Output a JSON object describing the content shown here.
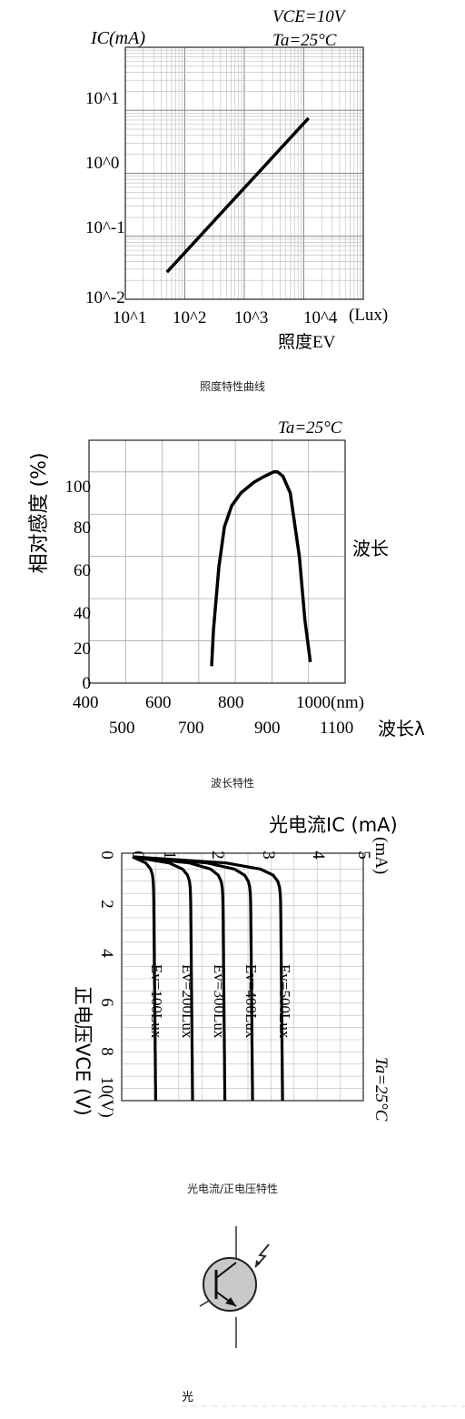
{
  "chart_data": [
    {
      "type": "line",
      "caption": "照度特性曲线",
      "ylabel": "IC(mA)",
      "xlabel": "照度EV",
      "x_unit": "(Lux)",
      "conditions": [
        "VCE=10V",
        "Ta=25°C"
      ],
      "xscale": "log",
      "yscale": "log",
      "xlim": [
        10,
        100000
      ],
      "ylim": [
        0.01,
        100
      ],
      "x_ticks": [
        "10^1",
        "10^2",
        "10^3",
        "10^4"
      ],
      "y_ticks": [
        "10^-2",
        "10^-1",
        "10^0",
        "10^1"
      ],
      "grid": true,
      "series": [
        {
          "x": [
            50,
            12000
          ],
          "y": [
            0.027,
            7.5
          ]
        }
      ]
    },
    {
      "type": "line",
      "caption": "波长特性",
      "ylabel": "相对感度 (%)",
      "xlabel": "波长λ",
      "side_label": "波长",
      "conditions": [
        "Ta=25°C"
      ],
      "xlim": [
        400,
        1100
      ],
      "ylim": [
        0,
        115
      ],
      "x_ticks_top": [
        "400",
        "600",
        "800",
        "1000(nm)"
      ],
      "x_ticks_bottom": [
        "500",
        "700",
        "900",
        "1100"
      ],
      "y_ticks": [
        "0",
        "20",
        "40",
        "60",
        "80",
        "100"
      ],
      "grid": true,
      "series": [
        {
          "x": [
            735,
            740,
            755,
            770,
            790,
            815,
            850,
            880,
            905,
            915,
            930,
            950,
            975,
            990,
            1005
          ],
          "y": [
            8,
            25,
            55,
            74,
            84,
            90,
            95,
            98,
            100,
            100,
            98,
            90,
            60,
            30,
            10
          ]
        }
      ]
    },
    {
      "type": "line",
      "caption": "光电流/正电压特性",
      "ylabel": "光电流IC (mA)",
      "xlabel": "正电压VCE (V)",
      "conditions": [
        "Ta=25°C"
      ],
      "orientation": "rotated",
      "ic_ticks": [
        "0",
        "1",
        "2",
        "3",
        "4",
        "5"
      ],
      "vce_ticks": [
        "0",
        "2",
        "4",
        "6",
        "8",
        "10(V)"
      ],
      "ic_lim": [
        0,
        5
      ],
      "vce_lim": [
        0,
        10
      ],
      "grid": true,
      "series": [
        {
          "name": "Ev=100Lux",
          "ic_sat": 0.45
        },
        {
          "name": "Ev=200Lux",
          "ic_sat": 1.25
        },
        {
          "name": "Ev=300Lux",
          "ic_sat": 1.95
        },
        {
          "name": "Ev=400Lux",
          "ic_sat": 2.55
        },
        {
          "name": "Ev=500Lux",
          "ic_sat": 3.2
        }
      ]
    }
  ],
  "symbol": {
    "icon": "phototransistor-symbol-icon",
    "caption": "光"
  }
}
